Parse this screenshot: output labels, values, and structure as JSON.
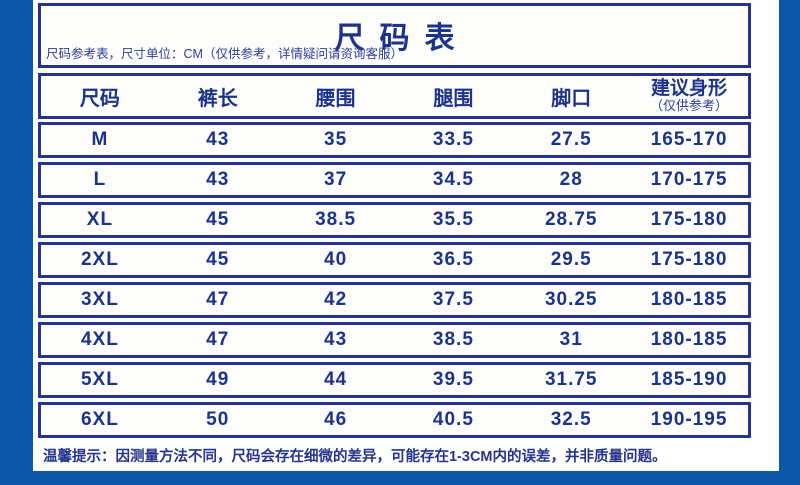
{
  "page": {
    "title": "尺码表",
    "subtitle": "尺码参考表，尺寸单位：CM（仅供参考，详情疑问请资询客服）",
    "footer_note": "温馨提示：因测量方法不同，尺码会存在细微的差异，可能存在1-3CM内的误差，并非质量问题。"
  },
  "colors": {
    "frame_blue": "#0d57a8",
    "border_navy": "#26328f",
    "text_navy": "#1c338c"
  },
  "chart_data": {
    "type": "table",
    "title": "尺码表",
    "unit": "CM",
    "columns": [
      "尺码",
      "裤长",
      "腰围",
      "腿围",
      "脚口",
      "建议身形"
    ],
    "last_column_note": "（仅供参考）",
    "rows": [
      [
        "M",
        "43",
        "35",
        "33.5",
        "27.5",
        "165-170"
      ],
      [
        "L",
        "43",
        "37",
        "34.5",
        "28",
        "170-175"
      ],
      [
        "XL",
        "45",
        "38.5",
        "35.5",
        "28.75",
        "175-180"
      ],
      [
        "2XL",
        "45",
        "40",
        "36.5",
        "29.5",
        "175-180"
      ],
      [
        "3XL",
        "47",
        "42",
        "37.5",
        "30.25",
        "180-185"
      ],
      [
        "4XL",
        "47",
        "43",
        "38.5",
        "31",
        "180-185"
      ],
      [
        "5XL",
        "49",
        "44",
        "39.5",
        "31.75",
        "185-190"
      ],
      [
        "6XL",
        "50",
        "46",
        "40.5",
        "32.5",
        "190-195"
      ]
    ]
  }
}
